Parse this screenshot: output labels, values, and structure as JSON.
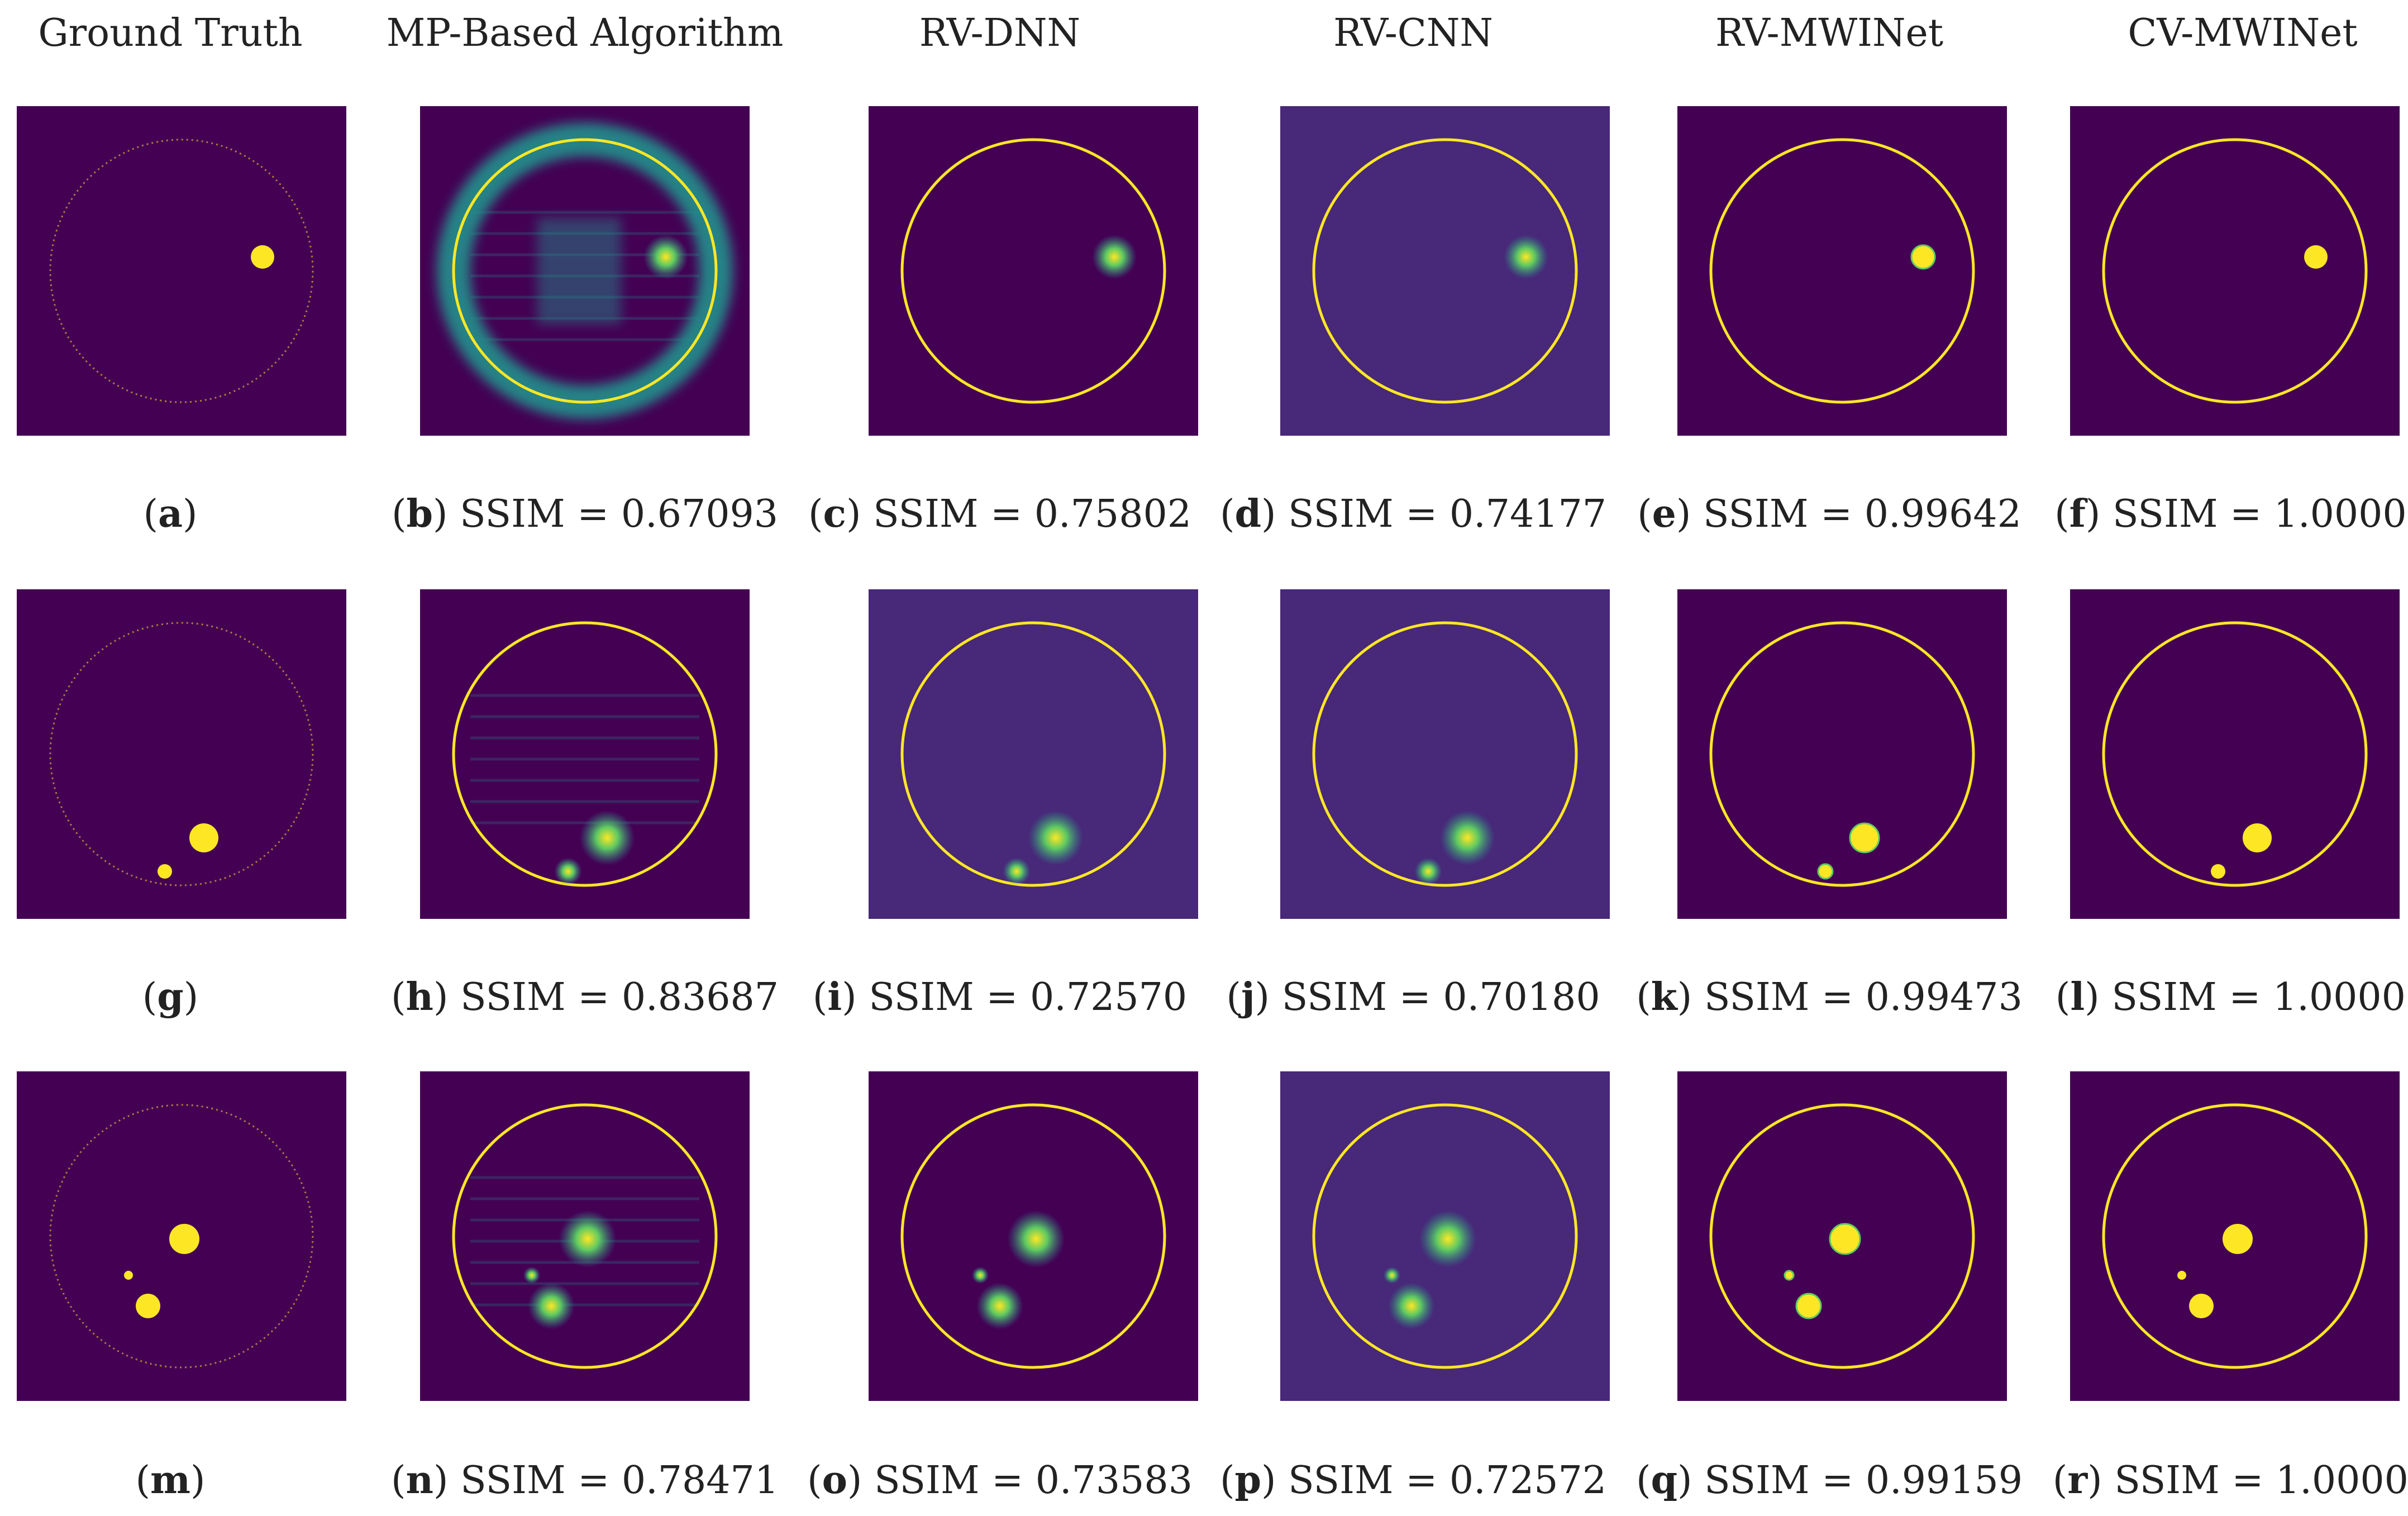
{
  "figure": {
    "columns": [
      "Ground Truth",
      "MP-Based Algorithm",
      "RV-DNN",
      "RV-CNN",
      "RV-MWINet",
      "CV-MWINet"
    ],
    "ssim_label": "SSIM",
    "rows": [
      {
        "panels": [
          {
            "letter": "a",
            "ssim": ""
          },
          {
            "letter": "b",
            "ssim": "0.67093"
          },
          {
            "letter": "c",
            "ssim": "0.75802"
          },
          {
            "letter": "d",
            "ssim": "0.74177"
          },
          {
            "letter": "e",
            "ssim": "0.99642"
          },
          {
            "letter": "f",
            "ssim": "1.00000"
          }
        ]
      },
      {
        "panels": [
          {
            "letter": "g",
            "ssim": ""
          },
          {
            "letter": "h",
            "ssim": "0.83687"
          },
          {
            "letter": "i",
            "ssim": "0.72570"
          },
          {
            "letter": "j",
            "ssim": "0.70180"
          },
          {
            "letter": "k",
            "ssim": "0.99473"
          },
          {
            "letter": "l",
            "ssim": "1.00000"
          }
        ]
      },
      {
        "panels": [
          {
            "letter": "m",
            "ssim": ""
          },
          {
            "letter": "n",
            "ssim": "0.78471"
          },
          {
            "letter": "o",
            "ssim": "0.73583"
          },
          {
            "letter": "p",
            "ssim": "0.72572"
          },
          {
            "letter": "q",
            "ssim": "0.99159"
          },
          {
            "letter": "r",
            "ssim": "1.00000"
          }
        ]
      }
    ],
    "colors": {
      "background": "#440154",
      "background_alt": "#482878",
      "ring": "#fde725",
      "target": "#fde725",
      "teal": "#21918c",
      "green": "#5ec962"
    }
  }
}
